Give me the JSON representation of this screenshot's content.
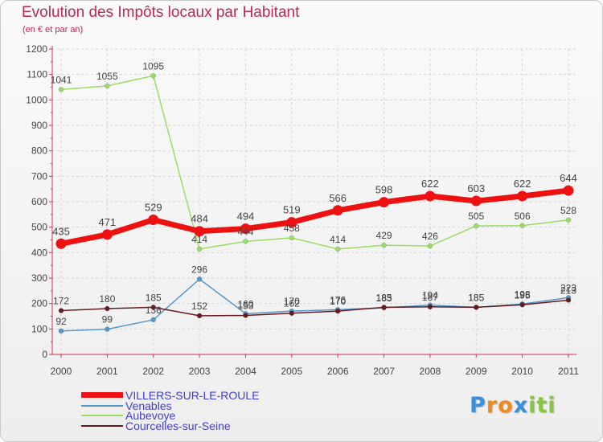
{
  "header": {
    "title": "Evolution des Impôts locaux par Habitant",
    "subtitle": "(en € et par an)"
  },
  "brand": {
    "logo_text": "Proxiti",
    "letters": [
      {
        "ch": "P",
        "color": "#3b8fd9"
      },
      {
        "ch": "r",
        "color": "#f08a1c"
      },
      {
        "ch": "o",
        "color": "#f08a1c"
      },
      {
        "ch": "x",
        "color": "#3b8fd9"
      },
      {
        "ch": "i",
        "color": "#8bc53f"
      },
      {
        "ch": "t",
        "color": "#8bc53f"
      },
      {
        "ch": "i",
        "color": "#8bc53f"
      }
    ]
  },
  "chart_data": {
    "type": "line",
    "title": "Evolution des Impôts locaux par Habitant",
    "subtitle": "(en € et par an)",
    "x": [
      "2000",
      "2001",
      "2002",
      "2003",
      "2004",
      "2005",
      "2006",
      "2007",
      "2008",
      "2009",
      "2010",
      "2011"
    ],
    "ylim": [
      0,
      1200
    ],
    "yticks": [
      0,
      100,
      200,
      300,
      400,
      500,
      600,
      700,
      800,
      900,
      1000,
      1100,
      1200
    ],
    "grid": true,
    "legend_position": "bottom-left",
    "series": [
      {
        "name": "VILLERS-SUR-LE-ROULE",
        "color": "#ee1111",
        "width": 7,
        "marker": 6.5,
        "values": [
          435,
          471,
          529,
          484,
          494,
          519,
          566,
          598,
          622,
          603,
          622,
          644
        ]
      },
      {
        "name": "Venables",
        "color": "#5599cc",
        "width": 1.5,
        "marker": 3,
        "values": [
          92,
          99,
          136,
          296,
          160,
          170,
          176,
          183,
          194,
          185,
          198,
          223
        ]
      },
      {
        "name": "Aubevoye",
        "color": "#99dd66",
        "width": 1.5,
        "marker": 3,
        "values": [
          1041,
          1055,
          1095,
          414,
          444,
          458,
          414,
          429,
          426,
          505,
          506,
          528
        ]
      },
      {
        "name": "Courcelles-sur-Seine",
        "color": "#661a22",
        "width": 1.5,
        "marker": 3,
        "values": [
          172,
          180,
          185,
          152,
          153,
          162,
          170,
          185,
          187,
          185,
          195,
          213
        ]
      }
    ]
  }
}
